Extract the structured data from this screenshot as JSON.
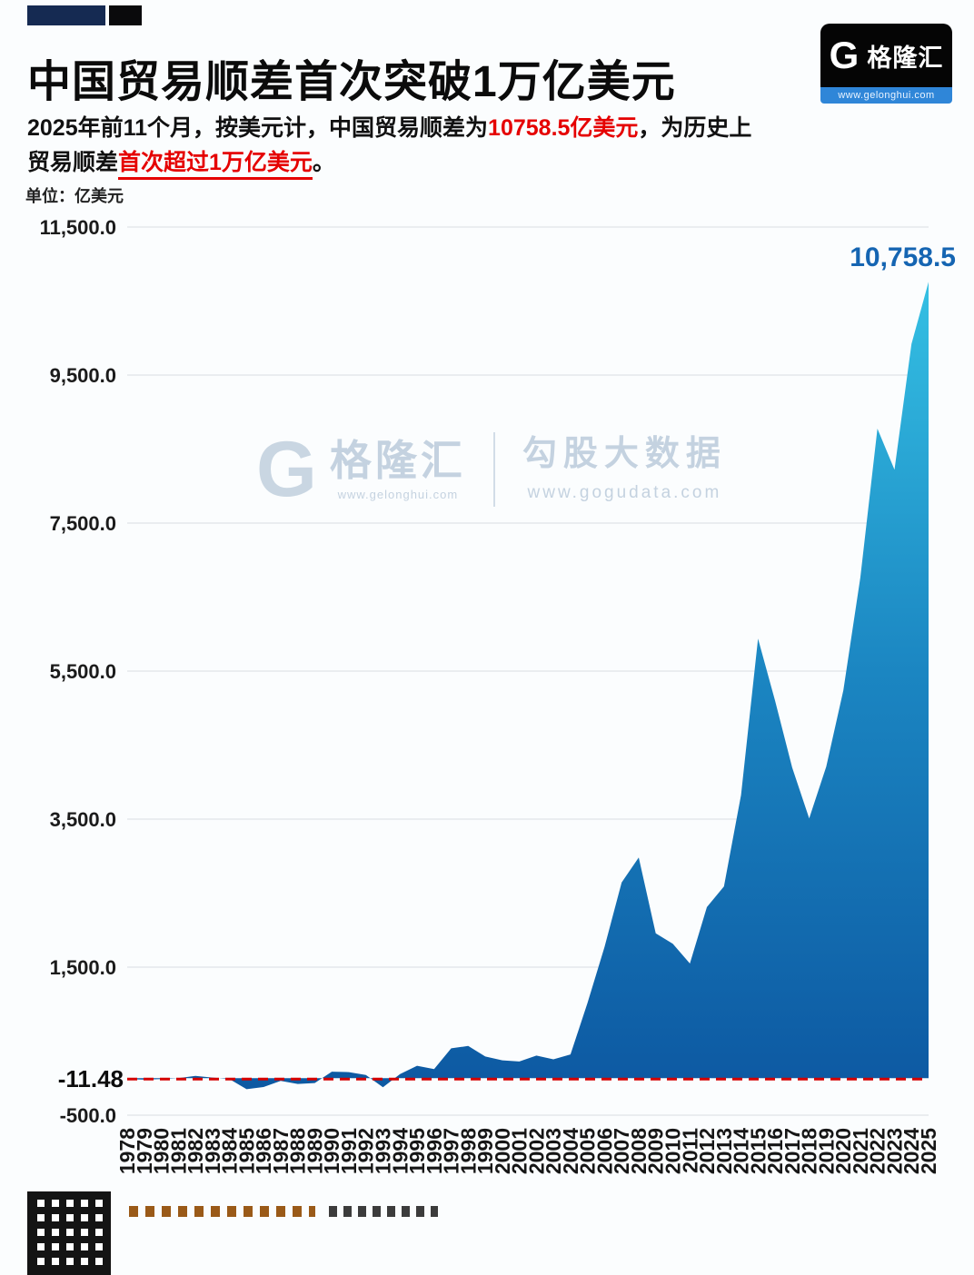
{
  "header": {
    "title": "中国贸易顺差首次突破1万亿美元",
    "subtitle_segments": [
      {
        "text": "2025年前11个月，按美元计，中国贸易顺差为",
        "style": "normal"
      },
      {
        "text": "10758.5亿美元",
        "style": "red"
      },
      {
        "text": "，为历史上",
        "style": "normal"
      },
      {
        "text": "贸易顺差",
        "style": "normal",
        "break": true
      },
      {
        "text": "首次超过1万亿美元",
        "style": "red-underline"
      },
      {
        "text": "。",
        "style": "normal"
      }
    ],
    "unit_label": "单位：亿美元",
    "logo": {
      "g": "G",
      "brand": "格隆汇",
      "url": "www.gelonghui.com"
    }
  },
  "watermark": {
    "g": "G",
    "brand": "格隆汇",
    "brand_url": "www.gelonghui.com",
    "right_title": "勾股大数据",
    "right_url": "www.gogudata.com"
  },
  "chart_data": {
    "type": "area",
    "title": "中国贸易顺差（亿美元）",
    "xlabel": "",
    "ylabel": "亿美元",
    "ylim": [
      -500,
      11500
    ],
    "grid": true,
    "x": [
      1978,
      1979,
      1980,
      1981,
      1982,
      1983,
      1984,
      1985,
      1986,
      1987,
      1988,
      1989,
      1990,
      1991,
      1992,
      1993,
      1994,
      1995,
      1996,
      1997,
      1998,
      1999,
      2000,
      2001,
      2002,
      2003,
      2004,
      2005,
      2006,
      2007,
      2008,
      2009,
      2010,
      2011,
      2012,
      2013,
      2014,
      2015,
      2016,
      2017,
      2018,
      2019,
      2020,
      2021,
      2022,
      2023,
      2024,
      2025
    ],
    "values": [
      -11.48,
      -20.1,
      -12.8,
      0.1,
      30.4,
      8.4,
      -12.7,
      -149.0,
      -119.6,
      -37.7,
      -77.5,
      -66.0,
      87.5,
      81.2,
      43.5,
      -122.2,
      54.0,
      167.0,
      122.2,
      403.4,
      434.7,
      292.3,
      241.1,
      225.4,
      304.3,
      254.7,
      320.9,
      1020.0,
      1775.3,
      2643.4,
      2981.2,
      1957.0,
      1815.1,
      1549.0,
      2311.1,
      2590.2,
      3824.6,
      5939.0,
      5097.1,
      4195.5,
      3509.5,
      4210.7,
      5240.0,
      6764.3,
      8776.0,
      8221.5,
      9921.0,
      10758.5
    ],
    "ytick_values": [
      11500,
      9500,
      7500,
      5500,
      3500,
      1500,
      -500
    ],
    "ytick_labels": [
      "11,500.0",
      "9,500.0",
      "7,500.0",
      "5,500.0",
      "3,500.0",
      "1,500.0",
      "-500.0"
    ],
    "reference_line": {
      "value": -11.48,
      "label": "-11.48"
    },
    "peak_label": "10,758.5",
    "colors": {
      "area_top": "#38c8e8",
      "area_mid": "#1b86c2",
      "area_bottom": "#0c56a0",
      "ref_line": "#d40000",
      "peak_label": "#1565b2",
      "grid": "#d9dde3",
      "tick_text": "#1b1b1b"
    },
    "legend_position": "none"
  },
  "footer": {
    "qr_icon": "qr-code"
  }
}
